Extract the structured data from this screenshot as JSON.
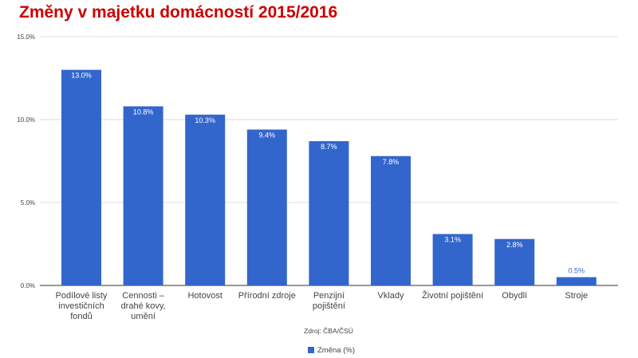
{
  "title": "Změny v majetku domácností 2015/2016",
  "source_note": "Zdroj: ČBA/ČSÚ",
  "colors": {
    "title": "#cc0000",
    "bar": "#3366cc",
    "grid": "#dddddd",
    "axis": "#333333"
  },
  "chart_data": {
    "type": "bar",
    "title": "Změny v majetku domácností 2015/2016",
    "categories": [
      [
        "Podílové listy",
        "investičních",
        "fondů"
      ],
      [
        "Cennosti –",
        "drahé kovy,",
        "umění"
      ],
      [
        "Hotovost"
      ],
      [
        "Přírodní zdroje"
      ],
      [
        "Penzijní",
        "pojištění"
      ],
      [
        "Vklady"
      ],
      [
        "Životní pojištění"
      ],
      [
        "Obydlí"
      ],
      [
        "Stroje"
      ]
    ],
    "series": [
      {
        "name": "Změna (%)",
        "values": [
          13.0,
          10.8,
          10.3,
          9.4,
          8.7,
          7.8,
          3.1,
          2.8,
          0.5
        ],
        "labels": [
          "13.0%",
          "10.8%",
          "10.3%",
          "9.4%",
          "8.7%",
          "7.8%",
          "3.1%",
          "2.8%",
          "0.5%"
        ]
      }
    ],
    "yticks": [
      "0.0%",
      "5.0%",
      "10.0%",
      "15.0%"
    ],
    "ytick_values": [
      0,
      5,
      10,
      15
    ],
    "ylim": [
      0,
      15
    ],
    "xlabel": "",
    "ylabel": "",
    "grid": true,
    "legend": "bottom"
  }
}
